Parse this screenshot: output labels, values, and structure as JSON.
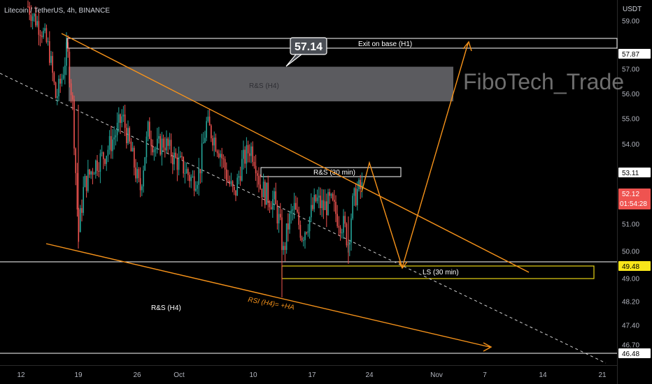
{
  "header": {
    "symbol": "Litecoin / TetherUS, 4h, BINANCE",
    "currency": "USDT"
  },
  "watermark": "FiboTech_Trade",
  "chart_data": {
    "type": "candlestick",
    "y_axis": {
      "ylim": [
        45.8,
        59.6
      ],
      "ticks": [
        "59.00",
        "57.87",
        "57.00",
        "56.00",
        "55.00",
        "54.00",
        "53.11",
        "52.12",
        "51.00",
        "50.00",
        "49.48",
        "49.00",
        "48.20",
        "47.40",
        "46.70",
        "46.48"
      ]
    },
    "x_axis": {
      "ticks": [
        "12",
        "19",
        "26",
        "Oct",
        "10",
        "17",
        "24",
        "Nov",
        "7",
        "14",
        "21"
      ]
    },
    "price_labels": [
      {
        "value": "57.87",
        "style": "white"
      },
      {
        "value": "53.11",
        "style": "white"
      },
      {
        "value": "52.12",
        "style": "red",
        "countdown": "01:54:28"
      },
      {
        "value": "49.48",
        "style": "yellow"
      },
      {
        "value": "46.48",
        "style": "white"
      }
    ],
    "zones": [
      {
        "label": "Exit on base (H1)",
        "from": 57.87,
        "to": 58.25
      },
      {
        "label": "R&S (H4)",
        "from": 55.7,
        "to": 57.1
      },
      {
        "label": "R&S (30 min)",
        "from": 52.85,
        "to": 53.12
      },
      {
        "label": "LS (30 min)",
        "from": 48.95,
        "to": 49.48
      }
    ],
    "callout": "57.14",
    "annotations": [
      "R&S (H4)",
      "RSI (H4)= +HA"
    ],
    "horizontal_lines": [
      49.6,
      46.48
    ]
  }
}
